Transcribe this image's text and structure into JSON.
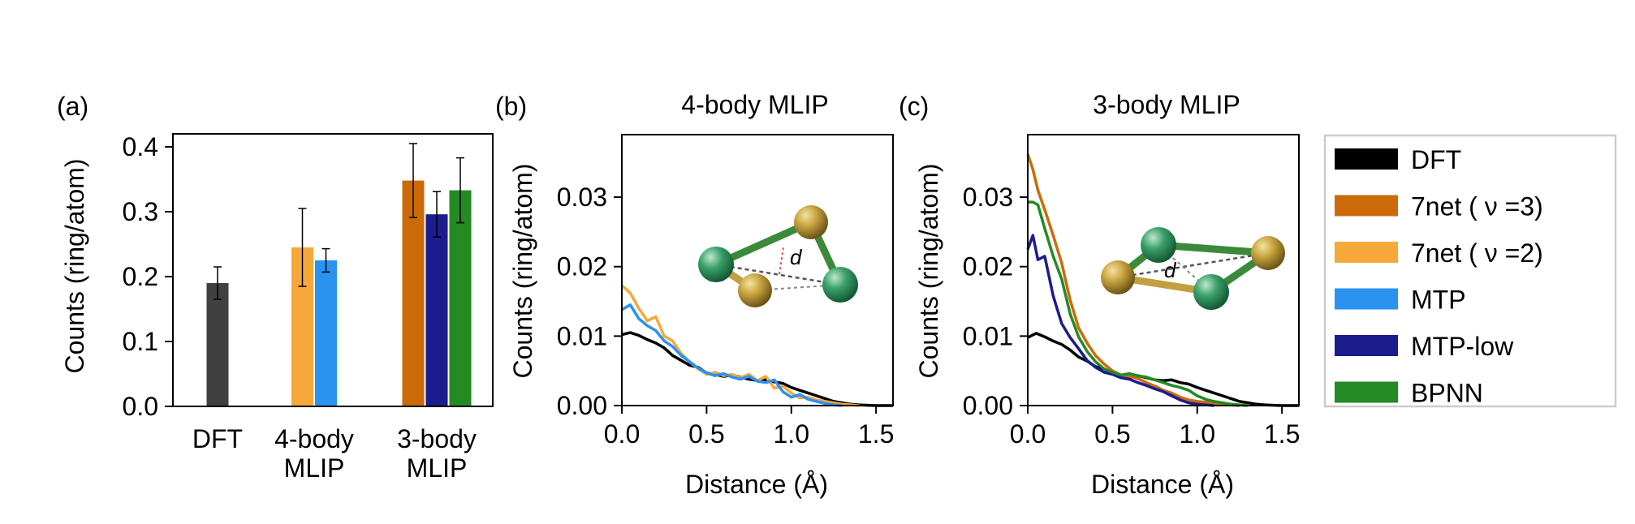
{
  "legend": {
    "placement": "right",
    "entries": [
      {
        "label": "DFT",
        "color": "#000000"
      },
      {
        "label": "7net ( ν =3)",
        "color": "#cc6a0a"
      },
      {
        "label": "7net ( ν =2)",
        "color": "#f7a83a"
      },
      {
        "label": "MTP",
        "color": "#2a93f0"
      },
      {
        "label": "MTP-low",
        "color": "#1c1c8e"
      },
      {
        "label": "BPNN",
        "color": "#248a24"
      }
    ]
  },
  "chart_data": [
    {
      "type": "bar",
      "panel_label": "(a)",
      "title": "",
      "xlabel": "",
      "ylabel": "Counts (ring/atom)",
      "ylim": [
        0,
        0.42
      ],
      "yticks": [
        "0.0",
        "0.1",
        "0.2",
        "0.3",
        "0.4"
      ],
      "groups": [
        {
          "label_lines": [
            "DFT"
          ],
          "bars": [
            {
              "series": "DFT",
              "value": 0.19,
              "err": 0.025,
              "color": "#404040"
            }
          ]
        },
        {
          "label_lines": [
            "4-body",
            "MLIP"
          ],
          "bars": [
            {
              "series": "7net ( ν =2)",
              "value": 0.245,
              "err": 0.06,
              "color": "#f7a83a"
            },
            {
              "series": "MTP",
              "value": 0.225,
              "err": 0.018,
              "color": "#2a93f0"
            }
          ]
        },
        {
          "label_lines": [
            "3-body",
            "MLIP"
          ],
          "bars": [
            {
              "series": "7net ( ν =3)",
              "value": 0.348,
              "err": 0.057,
              "color": "#cc6a0a"
            },
            {
              "series": "MTP-low",
              "value": 0.296,
              "err": 0.035,
              "color": "#1c1c8e"
            },
            {
              "series": "BPNN",
              "value": 0.333,
              "err": 0.05,
              "color": "#248a24"
            }
          ]
        }
      ]
    },
    {
      "type": "line",
      "panel_label": "(b)",
      "title": "4-body MLIP",
      "xlabel": "Distance (Å)",
      "ylabel": "Counts (ring/atom)",
      "xlim": [
        0,
        1.6
      ],
      "ylim": [
        0,
        0.039
      ],
      "xticks": [
        "0.0",
        "0.5",
        "1.0",
        "1.5"
      ],
      "yticks": [
        "0.00",
        "0.01",
        "0.02",
        "0.03"
      ],
      "inset_label": "d",
      "series": [
        {
          "name": "DFT",
          "color": "#000000",
          "x": [
            0,
            0.05,
            0.1,
            0.15,
            0.2,
            0.25,
            0.3,
            0.35,
            0.4,
            0.45,
            0.5,
            0.55,
            0.6,
            0.65,
            0.7,
            0.75,
            0.8,
            0.85,
            0.9,
            0.95,
            1.0,
            1.05,
            1.1,
            1.15,
            1.2,
            1.25,
            1.3,
            1.35,
            1.4,
            1.45,
            1.5,
            1.55,
            1.6
          ],
          "y": [
            0.0102,
            0.0105,
            0.0101,
            0.0095,
            0.009,
            0.0083,
            0.0072,
            0.0065,
            0.0058,
            0.0055,
            0.0047,
            0.0045,
            0.0042,
            0.0044,
            0.0041,
            0.0038,
            0.0036,
            0.0037,
            0.0034,
            0.0032,
            0.0026,
            0.0022,
            0.0018,
            0.0014,
            0.001,
            0.0006,
            0.0004,
            0.0002,
            0.0001,
            5e-05,
            0,
            0,
            0
          ]
        },
        {
          "name": "7net ( ν =2)",
          "color": "#f7a83a",
          "x": [
            0,
            0.05,
            0.1,
            0.15,
            0.2,
            0.25,
            0.3,
            0.35,
            0.4,
            0.45,
            0.5,
            0.55,
            0.6,
            0.65,
            0.7,
            0.75,
            0.8,
            0.85,
            0.9,
            0.95,
            1.0,
            1.05,
            1.1,
            1.15,
            1.2,
            1.25,
            1.3,
            1.35,
            1.4
          ],
          "y": [
            0.0173,
            0.0162,
            0.014,
            0.0122,
            0.0128,
            0.01,
            0.0093,
            0.0075,
            0.0063,
            0.0053,
            0.0045,
            0.0048,
            0.0043,
            0.0045,
            0.004,
            0.0045,
            0.0036,
            0.0042,
            0.0025,
            0.0028,
            0.0018,
            0.0011,
            0.0012,
            0.0008,
            0.0006,
            0.0004,
            0.0002,
            0.0001,
            0
          ]
        },
        {
          "name": "MTP",
          "color": "#2a93f0",
          "x": [
            0,
            0.05,
            0.1,
            0.15,
            0.2,
            0.25,
            0.3,
            0.35,
            0.4,
            0.45,
            0.5,
            0.55,
            0.6,
            0.65,
            0.7,
            0.75,
            0.8,
            0.85,
            0.9,
            0.95,
            1.0,
            1.05,
            1.1,
            1.15,
            1.2,
            1.25,
            1.3
          ],
          "y": [
            0.0138,
            0.0145,
            0.0125,
            0.0115,
            0.0108,
            0.0093,
            0.0085,
            0.0072,
            0.0063,
            0.0054,
            0.0047,
            0.0043,
            0.0046,
            0.0041,
            0.0038,
            0.0042,
            0.0035,
            0.0033,
            0.0037,
            0.002,
            0.0012,
            0.0016,
            0.0009,
            0.0006,
            0.0003,
            0.0001,
            0
          ]
        }
      ]
    },
    {
      "type": "line",
      "panel_label": "(c)",
      "title": "3-body MLIP",
      "xlabel": "Distance (Å)",
      "ylabel": "Counts (ring/atom)",
      "xlim": [
        0,
        1.6
      ],
      "ylim": [
        0,
        0.039
      ],
      "xticks": [
        "0.0",
        "0.5",
        "1.0",
        "1.5"
      ],
      "yticks": [
        "0.00",
        "0.01",
        "0.02",
        "0.03"
      ],
      "inset_label": "d",
      "series": [
        {
          "name": "DFT",
          "color": "#000000",
          "x": [
            0,
            0.05,
            0.1,
            0.15,
            0.2,
            0.25,
            0.3,
            0.35,
            0.4,
            0.45,
            0.5,
            0.55,
            0.6,
            0.65,
            0.7,
            0.75,
            0.8,
            0.85,
            0.9,
            0.95,
            1.0,
            1.05,
            1.1,
            1.15,
            1.2,
            1.25,
            1.3,
            1.35,
            1.4,
            1.45,
            1.5,
            1.55,
            1.6
          ],
          "y": [
            0.0098,
            0.0104,
            0.0099,
            0.0093,
            0.0088,
            0.008,
            0.007,
            0.0064,
            0.0056,
            0.0053,
            0.0046,
            0.0044,
            0.0041,
            0.0043,
            0.004,
            0.0037,
            0.0036,
            0.0037,
            0.0033,
            0.0031,
            0.0026,
            0.0022,
            0.0018,
            0.0014,
            0.001,
            0.0006,
            0.0004,
            0.0002,
            0.0001,
            5e-05,
            0,
            0,
            0
          ]
        },
        {
          "name": "7net ( ν =3)",
          "color": "#cc6a0a",
          "x": [
            0,
            0.03,
            0.06,
            0.1,
            0.15,
            0.2,
            0.25,
            0.3,
            0.35,
            0.4,
            0.45,
            0.5,
            0.55,
            0.6,
            0.65,
            0.7,
            0.75,
            0.8,
            0.85,
            0.9,
            0.95,
            1.0,
            1.05,
            1.1,
            1.15,
            1.2,
            1.25
          ],
          "y": [
            0.0362,
            0.034,
            0.031,
            0.0282,
            0.0245,
            0.0205,
            0.0152,
            0.0112,
            0.009,
            0.0072,
            0.006,
            0.005,
            0.0044,
            0.0042,
            0.0039,
            0.0033,
            0.0028,
            0.0022,
            0.0018,
            0.0012,
            0.0008,
            0.0006,
            0.0005,
            0.0003,
            0.0002,
            0.0001,
            0
          ]
        },
        {
          "name": "MTP-low",
          "color": "#1c1c8e",
          "x": [
            0,
            0.03,
            0.06,
            0.1,
            0.15,
            0.2,
            0.25,
            0.3,
            0.35,
            0.4,
            0.45,
            0.5,
            0.55,
            0.6,
            0.65,
            0.7,
            0.75,
            0.8,
            0.85,
            0.9,
            0.95,
            1.0,
            1.05,
            1.1
          ],
          "y": [
            0.0225,
            0.0245,
            0.021,
            0.0215,
            0.0158,
            0.0118,
            0.0098,
            0.0082,
            0.0065,
            0.0055,
            0.0048,
            0.0045,
            0.004,
            0.0038,
            0.0033,
            0.0029,
            0.0024,
            0.002,
            0.0014,
            0.0008,
            0.0004,
            0.0002,
            0.0001,
            0
          ]
        },
        {
          "name": "BPNN",
          "color": "#248a24",
          "x": [
            0,
            0.03,
            0.06,
            0.1,
            0.15,
            0.2,
            0.25,
            0.3,
            0.35,
            0.4,
            0.45,
            0.5,
            0.55,
            0.6,
            0.65,
            0.7,
            0.75,
            0.8,
            0.85,
            0.9,
            0.95,
            1.0,
            1.05,
            1.1,
            1.15,
            1.2,
            1.25,
            1.3
          ],
          "y": [
            0.0293,
            0.0293,
            0.0289,
            0.0255,
            0.0215,
            0.0182,
            0.0132,
            0.0099,
            0.0078,
            0.0063,
            0.0053,
            0.0048,
            0.0044,
            0.0046,
            0.0043,
            0.0041,
            0.0037,
            0.0033,
            0.0029,
            0.0026,
            0.0022,
            0.0014,
            0.0009,
            0.0006,
            0.0004,
            0.0002,
            0.0001,
            0
          ]
        }
      ]
    }
  ]
}
